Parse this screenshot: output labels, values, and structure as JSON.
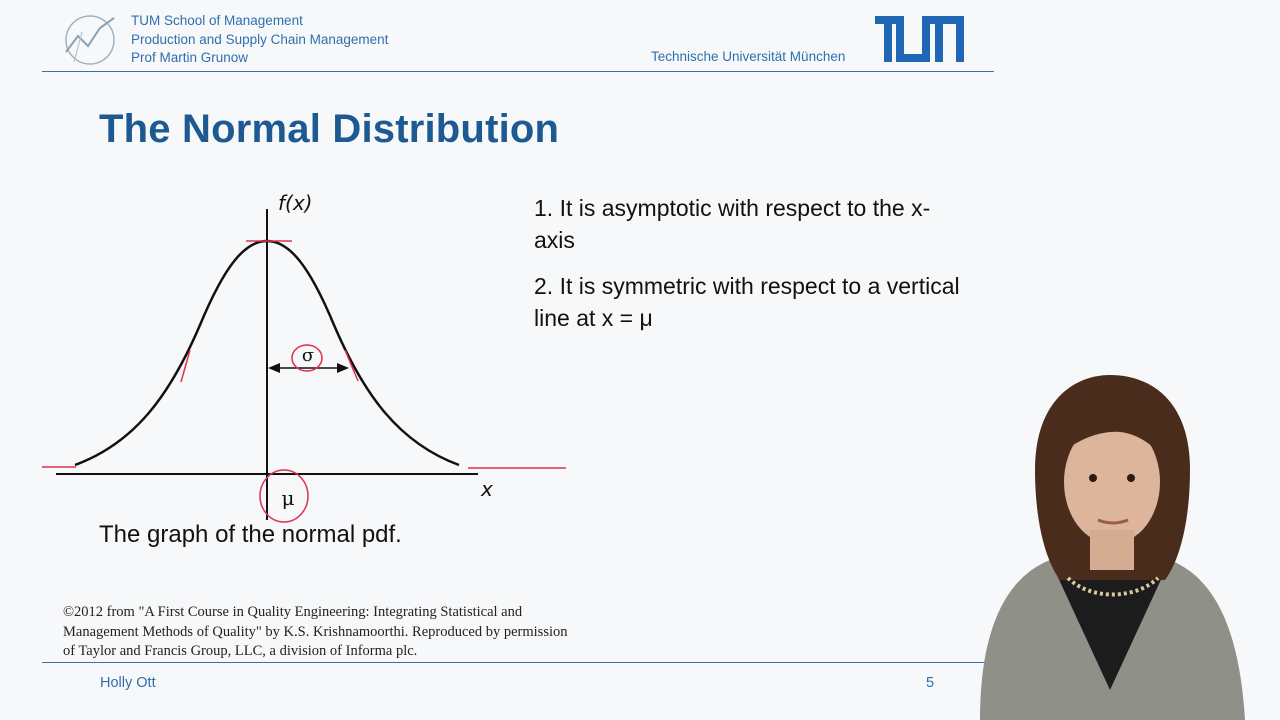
{
  "header": {
    "school": "TUM School of Management",
    "chair": "Production and Supply Chain Management",
    "professor": "Prof Martin Grunow",
    "university": "Technische Universität München",
    "logo_text": "TUM"
  },
  "slide": {
    "title": "The Normal Distribution",
    "points": [
      "1. It is asymptotic with respect to the x-axis",
      "2. It is symmetric with respect to a vertical line at x = μ"
    ]
  },
  "figure": {
    "y_label": "f(x)",
    "x_label": "x",
    "mean_label": "μ",
    "sigma_label": "σ",
    "caption": "The graph of the normal pdf."
  },
  "copyright": "©2012 from \"A First Course in Quality Engineering: Integrating Statistical and Management Methods of Quality\" by K.S. Krishnamoorthi. Reproduced by permission of Taylor and Francis Group, LLC, a division of Informa plc.",
  "footer": {
    "presenter": "Holly Ott",
    "page": "5"
  },
  "colors": {
    "brand_blue": "#1d5a93",
    "annotation_red": "#e0304a"
  }
}
